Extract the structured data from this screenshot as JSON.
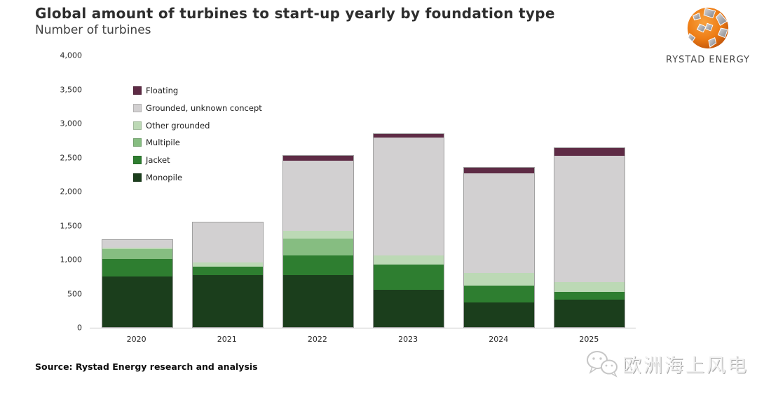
{
  "header": {
    "title": "Global amount of turbines to start-up yearly by foundation type",
    "subtitle": "Number of turbines"
  },
  "logo": {
    "text": "RYSTAD ENERGY"
  },
  "chart_data": {
    "type": "bar",
    "stacked": true,
    "title": "Global amount of turbines to start-up yearly by foundation type",
    "ylabel": "Number of turbines",
    "xlabel": "",
    "categories": [
      "2020",
      "2021",
      "2022",
      "2023",
      "2024",
      "2025"
    ],
    "ylim": [
      0,
      4000
    ],
    "y_ticks": [
      0,
      500,
      1000,
      1500,
      2000,
      2500,
      3000,
      3500,
      4000
    ],
    "grid": false,
    "legend_position": "upper-left-inside",
    "series": [
      {
        "name": "Monopile",
        "key": "monopile",
        "color": "#1b3e1c",
        "values": [
          740,
          760,
          760,
          550,
          365,
          400
        ]
      },
      {
        "name": "Jacket",
        "key": "jacket",
        "color": "#2e7e30",
        "values": [
          260,
          130,
          290,
          370,
          240,
          120
        ]
      },
      {
        "name": "Multipile",
        "key": "multipile",
        "color": "#86bd81",
        "values": [
          140,
          0,
          245,
          0,
          0,
          0
        ]
      },
      {
        "name": "Other grounded",
        "key": "other-grounded",
        "color": "#bcd9b5",
        "values": [
          30,
          60,
          120,
          130,
          190,
          140
        ]
      },
      {
        "name": "Grounded, unknown concept",
        "key": "grounded-unknown",
        "color": "#d2d0d1",
        "values": [
          110,
          590,
          1030,
          1730,
          1460,
          1860
        ]
      },
      {
        "name": "Floating",
        "key": "floating",
        "color": "#5e2b45",
        "values": [
          0,
          0,
          75,
          60,
          85,
          110
        ]
      }
    ],
    "totals": [
      1280,
      1540,
      2520,
      2840,
      2340,
      2630
    ]
  },
  "source": {
    "text": "Source: Rystad Energy research and analysis"
  },
  "watermark": {
    "text": "欧洲海上风电"
  }
}
